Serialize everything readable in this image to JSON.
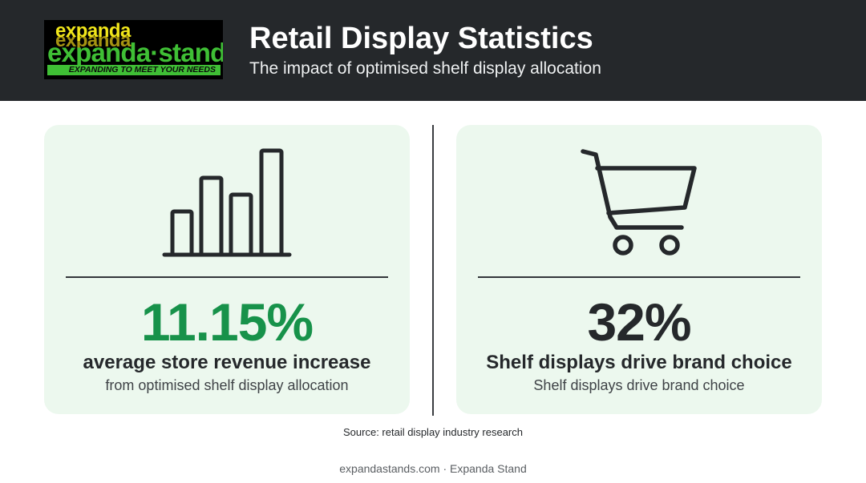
{
  "header": {
    "logo": {
      "line1": "expanda",
      "line2": "expanda·stand",
      "tagline": "EXPANDING TO MEET YOUR NEEDS"
    },
    "title": "Retail Display Statistics",
    "subtitle": "The impact of optimised shelf display allocation"
  },
  "cards": [
    {
      "icon": "bar-chart-icon",
      "stat": "11.15%",
      "label": "average store revenue increase",
      "description": "from optimised shelf display allocation",
      "stat_color": "#17924a"
    },
    {
      "icon": "shopping-cart-icon",
      "stat": "32%",
      "label": "Shelf displays drive brand choice",
      "description": "Shelf displays drive brand choice",
      "stat_color": "#25282b"
    }
  ],
  "source": "Source: retail display industry research",
  "footer": "expandastands.com · Expanda Stand",
  "colors": {
    "header_bg": "#25282b",
    "card_bg": "#ecf8ee",
    "accent_green": "#17924a",
    "logo_yellow": "#f1e61a",
    "logo_green": "#3fbf35"
  }
}
